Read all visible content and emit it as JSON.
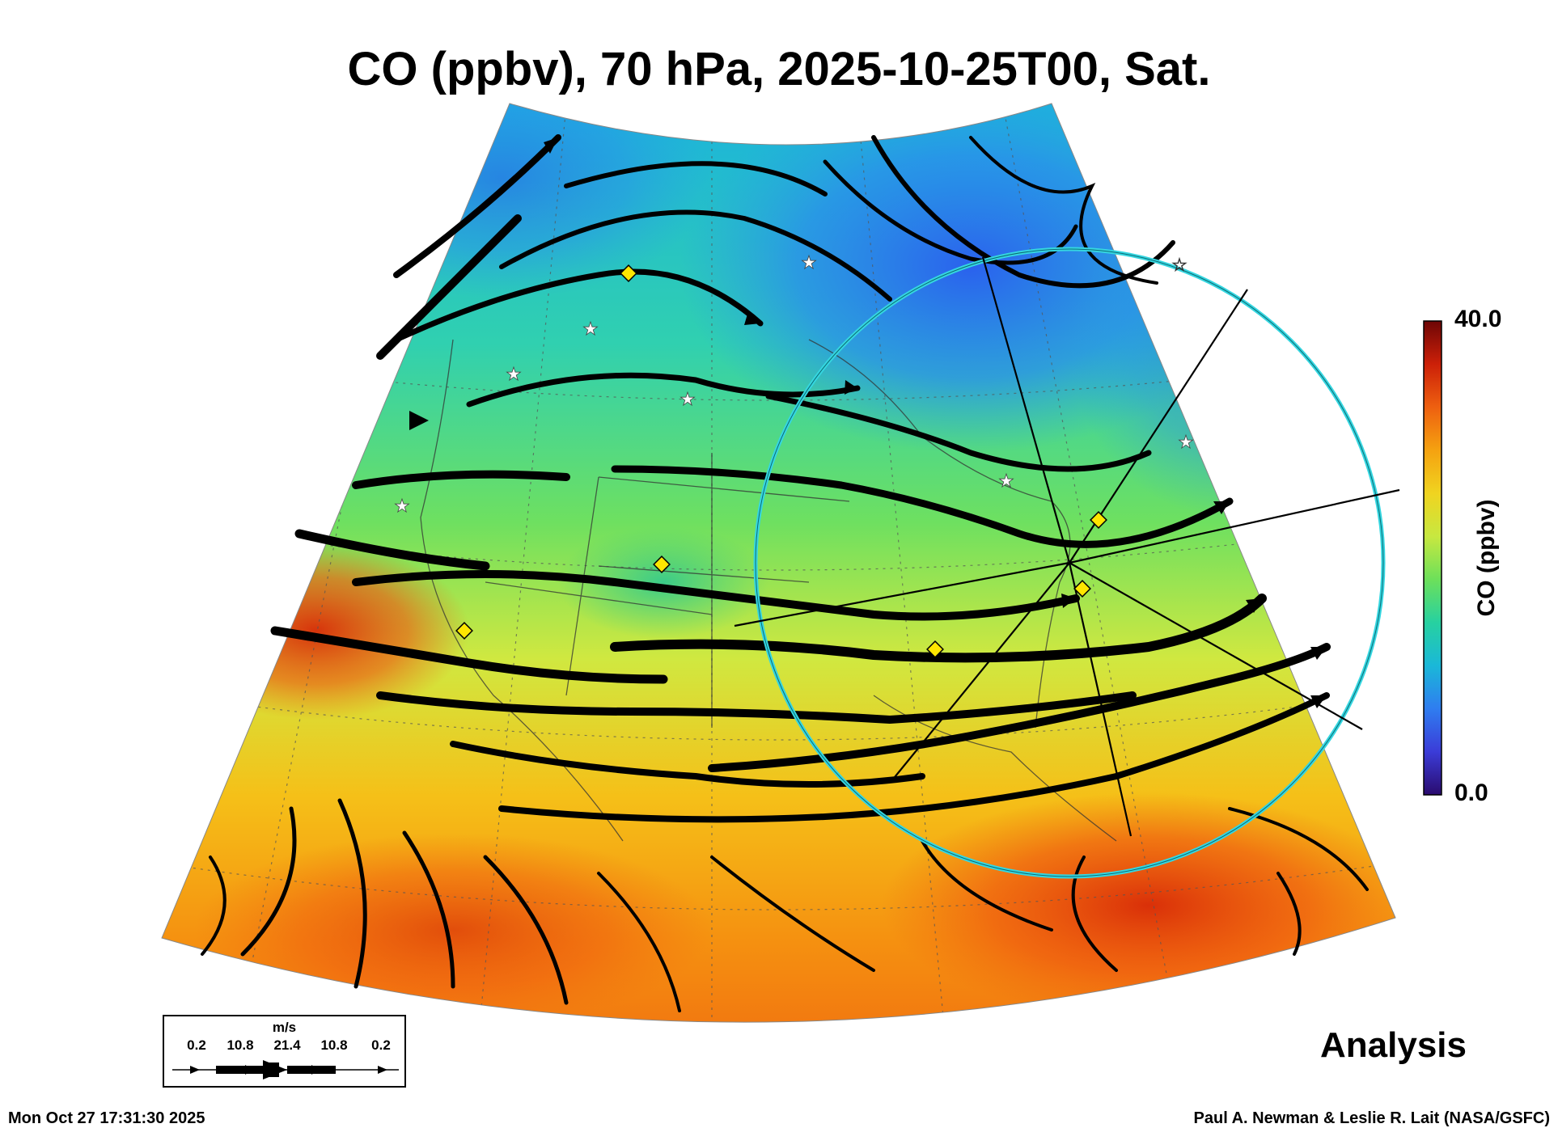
{
  "title": "CO (ppbv), 70 hPa, 2025-10-25T00, Sat.",
  "colorbar": {
    "max_label": "40.0",
    "min_label": "0.0",
    "label": "CO (ppbv)",
    "colors": [
      "#2a0b6e",
      "#3b3cd8",
      "#2f7df0",
      "#1ab8d8",
      "#27d1a0",
      "#6de05a",
      "#c7e840",
      "#f0d420",
      "#f5a210",
      "#ee6010",
      "#cc2008",
      "#6e0606"
    ]
  },
  "legend": {
    "unit": "m/s",
    "values": [
      "0.2",
      "10.8",
      "21.4",
      "10.8",
      "0.2"
    ]
  },
  "analysis_label": "Analysis",
  "timestamp": "Mon Oct 27 17:31:30 2025",
  "credit": "Paul A. Newman & Leslie R. Lait (NASA/GSFC)",
  "markers": {
    "diamond_color": "#ffe600",
    "star_color": "#ffffff",
    "ring_color": "#35d6e0"
  }
}
